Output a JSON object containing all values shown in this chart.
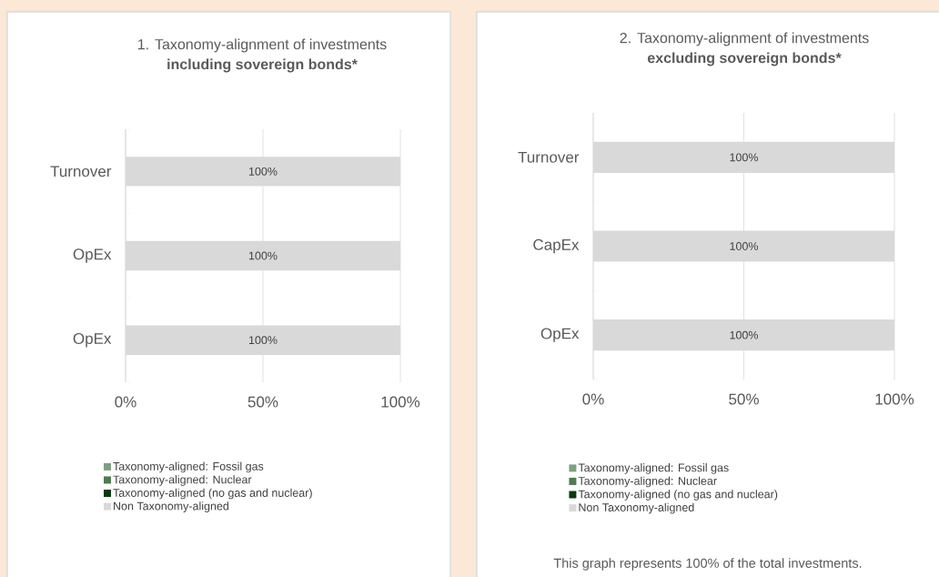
{
  "chart_data": [
    {
      "type": "bar",
      "orientation": "horizontal",
      "stacked": true,
      "title": "1. Taxonomy-alignment of investments",
      "subtitle": "including sovereign bonds*",
      "categories": [
        "Turnover",
        "OpEx",
        "OpEx"
      ],
      "series": [
        {
          "name": "Taxonomy-aligned: Fossil gas",
          "color": "#7f9f80",
          "values": [
            0,
            0,
            0
          ]
        },
        {
          "name": "Taxonomy-aligned: Nuclear",
          "color": "#4f7b50",
          "values": [
            0,
            0,
            0
          ]
        },
        {
          "name": "Taxonomy-aligned (no gas and nuclear)",
          "color": "#0a3a0c",
          "values": [
            0,
            0,
            0
          ]
        },
        {
          "name": "Non Taxonomy-aligned",
          "color": "#d9d9d9",
          "values": [
            100,
            100,
            100
          ],
          "value_labels": [
            "100%",
            "100%",
            "100%"
          ]
        }
      ],
      "xlim": [
        0,
        100
      ],
      "xticks": [
        {
          "value": 0,
          "label": "0%"
        },
        {
          "value": 50,
          "label": "50%"
        },
        {
          "value": 100,
          "label": "100%"
        }
      ],
      "grid": "x",
      "legend": "bottom"
    },
    {
      "type": "bar",
      "orientation": "horizontal",
      "stacked": true,
      "title": "2. Taxonomy-alignment of investments",
      "subtitle": "excluding sovereign bonds*",
      "categories": [
        "Turnover",
        "CapEx",
        "OpEx"
      ],
      "series": [
        {
          "name": "Taxonomy-aligned: Fossil gas",
          "color": "#7f9f80",
          "values": [
            0,
            0,
            0
          ]
        },
        {
          "name": "Taxonomy-aligned: Nuclear",
          "color": "#4f7b50",
          "values": [
            0,
            0,
            0
          ]
        },
        {
          "name": "Taxonomy-aligned (no gas and nuclear)",
          "color": "#0a3a0c",
          "values": [
            0,
            0,
            0
          ]
        },
        {
          "name": "Non Taxonomy-aligned",
          "color": "#d9d9d9",
          "values": [
            100,
            100,
            100
          ],
          "value_labels": [
            "100%",
            "100%",
            "100%"
          ]
        }
      ],
      "xlim": [
        0,
        100
      ],
      "xticks": [
        {
          "value": 0,
          "label": "0%"
        },
        {
          "value": 50,
          "label": "50%"
        },
        {
          "value": 100,
          "label": "100%"
        }
      ],
      "grid": "x",
      "legend": "bottom",
      "annotations": [
        "This graph represents 100% of the total investments."
      ]
    }
  ]
}
